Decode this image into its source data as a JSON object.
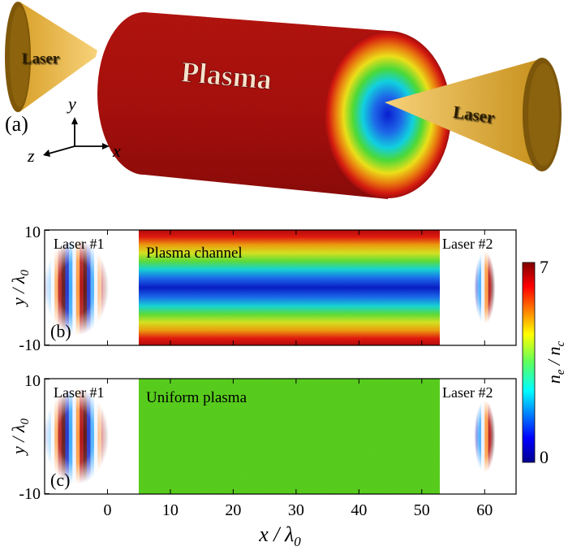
{
  "panel_a": {
    "label": "(a)",
    "laser_left": "Laser",
    "laser_right": "Laser",
    "plasma": "Plasma",
    "axis_y": "y",
    "axis_z": "z",
    "axis_x": "x"
  },
  "panels": [
    {
      "label": "(b)",
      "annotation": "Plasma channel",
      "laser1": "Laser #1",
      "laser2": "Laser #2",
      "y_tick_top": "10",
      "y_tick_bottom": "-10"
    },
    {
      "label": "(c)",
      "annotation": "Uniform plasma",
      "laser1": "Laser #1",
      "laser2": "Laser #2",
      "y_tick_top": "10",
      "y_tick_bottom": "-10"
    }
  ],
  "colorbar": {
    "min": "0",
    "max": "7",
    "label": "ne / nc"
  },
  "chart_data": [
    {
      "type": "heatmap",
      "panel": "(b)",
      "description_text": "Plasma channel",
      "xlim": [
        -10,
        65
      ],
      "ylim": [
        -10,
        10
      ],
      "x_ticks": [
        0,
        10,
        20,
        30,
        40,
        50,
        60
      ],
      "y_ticks": [
        -10,
        10
      ],
      "plasma_x_range": [
        3,
        53
      ],
      "density_profile": "parabolic channel, minimum at y=0, maximum at |y|=10",
      "laser1_center_x": -5,
      "laser2_center_x": 60
    },
    {
      "type": "heatmap",
      "panel": "(c)",
      "description_text": "Uniform plasma",
      "xlim": [
        -10,
        65
      ],
      "ylim": [
        -10,
        10
      ],
      "x_ticks": [
        0,
        10,
        20,
        30,
        40,
        50,
        60
      ],
      "y_ticks": [
        -10,
        10
      ],
      "plasma_x_range": [
        3,
        53
      ],
      "density_profile": "uniform",
      "laser1_center_x": -5,
      "laser2_center_x": 60
    }
  ],
  "x_ticks": [
    "0",
    "10",
    "20",
    "30",
    "40",
    "50",
    "60"
  ],
  "colors": {
    "plasma_red": "#b40f0f",
    "laser_gold": "#c8921a",
    "uniform_green": "#5ad11e"
  }
}
